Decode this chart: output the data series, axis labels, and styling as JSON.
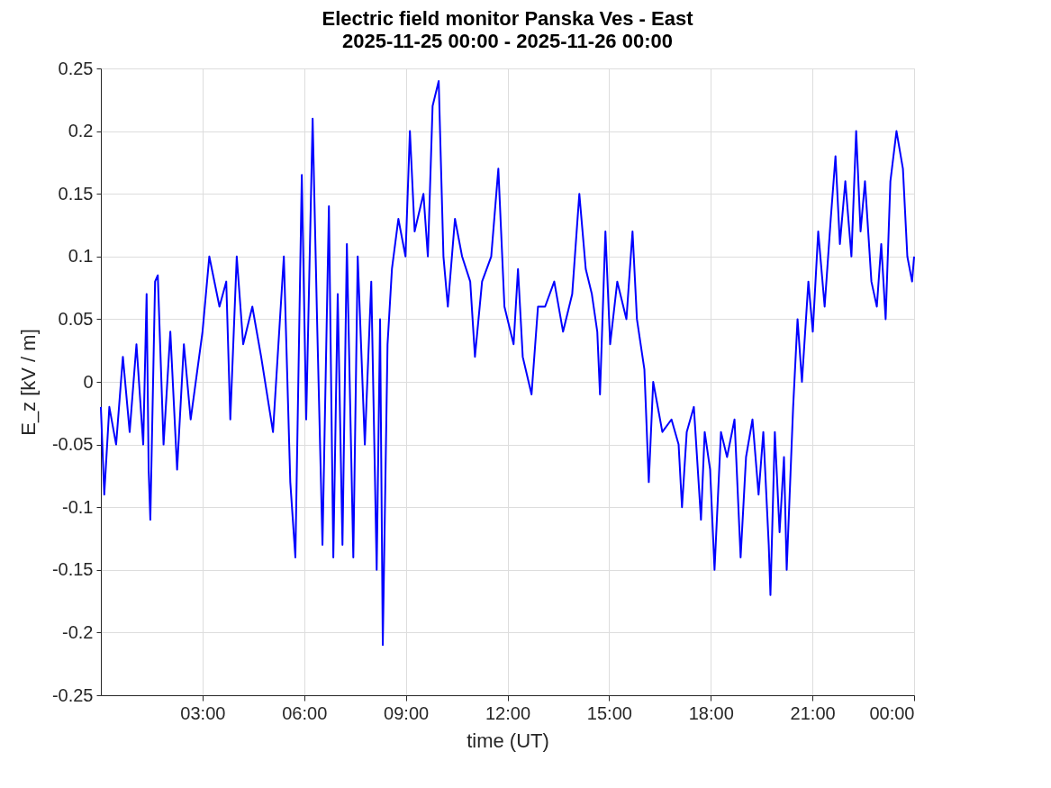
{
  "chart_data": {
    "type": "line",
    "title": "Electric field monitor Panska Ves - East",
    "subtitle": "2025-11-25 00:00 - 2025-11-26 00:00",
    "xlabel": "time (UT)",
    "ylabel": "E_z [kV / m]",
    "x": [
      0.0,
      0.1,
      0.25,
      0.45,
      0.65,
      0.85,
      1.05,
      1.25,
      1.35,
      1.41,
      1.46,
      1.6,
      1.68,
      1.85,
      2.05,
      2.25,
      2.45,
      2.65,
      3.0,
      3.2,
      3.5,
      3.7,
      3.82,
      4.01,
      4.2,
      4.47,
      4.73,
      5.08,
      5.4,
      5.59,
      5.74,
      5.93,
      6.06,
      6.25,
      6.38,
      6.54,
      6.73,
      6.86,
      6.99,
      7.13,
      7.26,
      7.45,
      7.58,
      7.79,
      7.98,
      8.14,
      8.24,
      8.32,
      8.46,
      8.59,
      8.78,
      8.99,
      9.12,
      9.26,
      9.52,
      9.65,
      9.79,
      9.97,
      10.11,
      10.24,
      10.45,
      10.66,
      10.9,
      11.04,
      11.25,
      11.52,
      11.73,
      11.91,
      12.18,
      12.31,
      12.45,
      12.71,
      12.9,
      13.11,
      13.38,
      13.64,
      13.91,
      14.12,
      14.31,
      14.49,
      14.65,
      14.73,
      14.89,
      15.03,
      15.24,
      15.51,
      15.69,
      15.82,
      16.04,
      16.17,
      16.3,
      16.57,
      16.84,
      17.05,
      17.15,
      17.29,
      17.5,
      17.71,
      17.82,
      17.98,
      18.11,
      18.3,
      18.48,
      18.7,
      18.88,
      19.04,
      19.23,
      19.41,
      19.55,
      19.71,
      19.76,
      19.89,
      20.03,
      20.16,
      20.24,
      20.43,
      20.56,
      20.69,
      20.88,
      21.01,
      21.17,
      21.36,
      21.54,
      21.68,
      21.81,
      21.97,
      22.15,
      22.29,
      22.42,
      22.55,
      22.74,
      22.9,
      23.03,
      23.16,
      23.3,
      23.48,
      23.67,
      23.8,
      23.94,
      24.0
    ],
    "series": [
      {
        "color": "#0000ff",
        "values": [
          -0.02,
          -0.09,
          -0.02,
          -0.05,
          0.02,
          -0.04,
          0.03,
          -0.05,
          0.07,
          -0.07,
          -0.11,
          0.08,
          0.085,
          -0.05,
          0.04,
          -0.07,
          0.03,
          -0.03,
          0.04,
          0.1,
          0.06,
          0.08,
          -0.03,
          0.1,
          0.03,
          0.06,
          0.02,
          -0.04,
          0.1,
          -0.08,
          -0.14,
          0.165,
          -0.03,
          0.21,
          0.05,
          -0.13,
          0.14,
          -0.14,
          0.07,
          -0.13,
          0.11,
          -0.14,
          0.1,
          -0.05,
          0.08,
          -0.15,
          0.05,
          -0.21,
          0.03,
          0.09,
          0.13,
          0.1,
          0.2,
          0.12,
          0.15,
          0.1,
          0.22,
          0.24,
          0.1,
          0.06,
          0.13,
          0.1,
          0.08,
          0.02,
          0.08,
          0.1,
          0.17,
          0.06,
          0.03,
          0.09,
          0.02,
          -0.01,
          0.06,
          0.06,
          0.08,
          0.04,
          0.07,
          0.15,
          0.09,
          0.07,
          0.04,
          -0.01,
          0.12,
          0.03,
          0.08,
          0.05,
          0.12,
          0.05,
          0.01,
          -0.08,
          0.0,
          -0.04,
          -0.03,
          -0.05,
          -0.1,
          -0.04,
          -0.02,
          -0.11,
          -0.04,
          -0.07,
          -0.15,
          -0.04,
          -0.06,
          -0.03,
          -0.14,
          -0.06,
          -0.03,
          -0.09,
          -0.04,
          -0.13,
          -0.17,
          -0.04,
          -0.12,
          -0.06,
          -0.15,
          -0.02,
          0.05,
          0.0,
          0.08,
          0.04,
          0.12,
          0.06,
          0.13,
          0.18,
          0.11,
          0.16,
          0.1,
          0.2,
          0.12,
          0.16,
          0.08,
          0.06,
          0.11,
          0.05,
          0.16,
          0.2,
          0.17,
          0.1,
          0.08,
          0.1
        ]
      }
    ],
    "xlim": [
      0,
      24
    ],
    "xticks": [
      {
        "value": 3,
        "label": "03:00"
      },
      {
        "value": 6,
        "label": "06:00"
      },
      {
        "value": 9,
        "label": "09:00"
      },
      {
        "value": 12,
        "label": "12:00"
      },
      {
        "value": 15,
        "label": "15:00"
      },
      {
        "value": 18,
        "label": "18:00"
      },
      {
        "value": 21,
        "label": "21:00"
      },
      {
        "value": 24,
        "label": "00:00"
      }
    ],
    "ylim": [
      -0.25,
      0.25
    ],
    "yticks": [
      -0.25,
      -0.2,
      -0.15,
      -0.1,
      -0.05,
      0,
      0.05,
      0.1,
      0.15,
      0.2,
      0.25
    ],
    "grid": true
  }
}
